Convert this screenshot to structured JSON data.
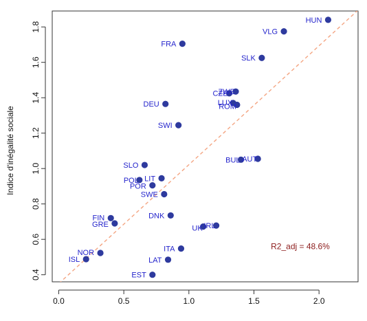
{
  "chart_data": {
    "type": "scatter",
    "ylabel": "Indice d'inégalité sociale",
    "xlim": [
      -0.05,
      2.3
    ],
    "ylim": [
      0.36,
      1.89
    ],
    "x_ticks": [
      "0.0",
      "0.5",
      "1.0",
      "1.5",
      "2.0"
    ],
    "y_ticks": [
      "0.4",
      "0.6",
      "0.8",
      "1.0",
      "1.2",
      "1.4",
      "1.6",
      "1.8"
    ],
    "grid": false,
    "points": [
      {
        "label": "HUN",
        "x": 2.07,
        "y": 1.84
      },
      {
        "label": "VLG",
        "x": 1.73,
        "y": 1.775
      },
      {
        "label": "FRA",
        "x": 0.95,
        "y": 1.705
      },
      {
        "label": "SLK",
        "x": 1.56,
        "y": 1.625
      },
      {
        "label": "ZWE",
        "x": 1.36,
        "y": 1.435
      },
      {
        "label": "CZE",
        "x": 1.31,
        "y": 1.425
      },
      {
        "label": "LUX",
        "x": 1.34,
        "y": 1.37
      },
      {
        "label": "ROM",
        "x": 1.37,
        "y": 1.36
      },
      {
        "label": "DEU",
        "x": 0.82,
        "y": 1.365
      },
      {
        "label": "SWI",
        "x": 0.92,
        "y": 1.245
      },
      {
        "label": "AUT",
        "x": 1.53,
        "y": 1.055
      },
      {
        "label": "BUL",
        "x": 1.4,
        "y": 1.05
      },
      {
        "label": "SLO",
        "x": 0.66,
        "y": 1.02
      },
      {
        "label": "LIT",
        "x": 0.79,
        "y": 0.945
      },
      {
        "label": "POL",
        "x": 0.62,
        "y": 0.935
      },
      {
        "label": "POR",
        "x": 0.72,
        "y": 0.905
      },
      {
        "label": "SWE",
        "x": 0.81,
        "y": 0.855
      },
      {
        "label": "DNK",
        "x": 0.86,
        "y": 0.735
      },
      {
        "label": "FIN",
        "x": 0.4,
        "y": 0.72
      },
      {
        "label": "GRE",
        "x": 0.43,
        "y": 0.69
      },
      {
        "label": "IRL",
        "x": 1.21,
        "y": 0.678
      },
      {
        "label": "UK",
        "x": 1.11,
        "y": 0.672
      },
      {
        "label": "ITA",
        "x": 0.94,
        "y": 0.548
      },
      {
        "label": "NOR",
        "x": 0.32,
        "y": 0.523
      },
      {
        "label": "ISL",
        "x": 0.21,
        "y": 0.488
      },
      {
        "label": "LAT",
        "x": 0.84,
        "y": 0.485
      },
      {
        "label": "EST",
        "x": 0.72,
        "y": 0.4
      }
    ],
    "reference_line": {
      "x": [
        0.0,
        2.3
      ],
      "y": [
        0.35,
        1.895
      ],
      "style": "dashed"
    },
    "annotations": [
      {
        "text": "R2_adj = 48.6%"
      }
    ],
    "colors": {
      "point": "#2e3a9e",
      "label": "#2424cc",
      "reference_line": "#f4a582",
      "annotation": "#8b1a1a",
      "axis": "#333333"
    }
  }
}
